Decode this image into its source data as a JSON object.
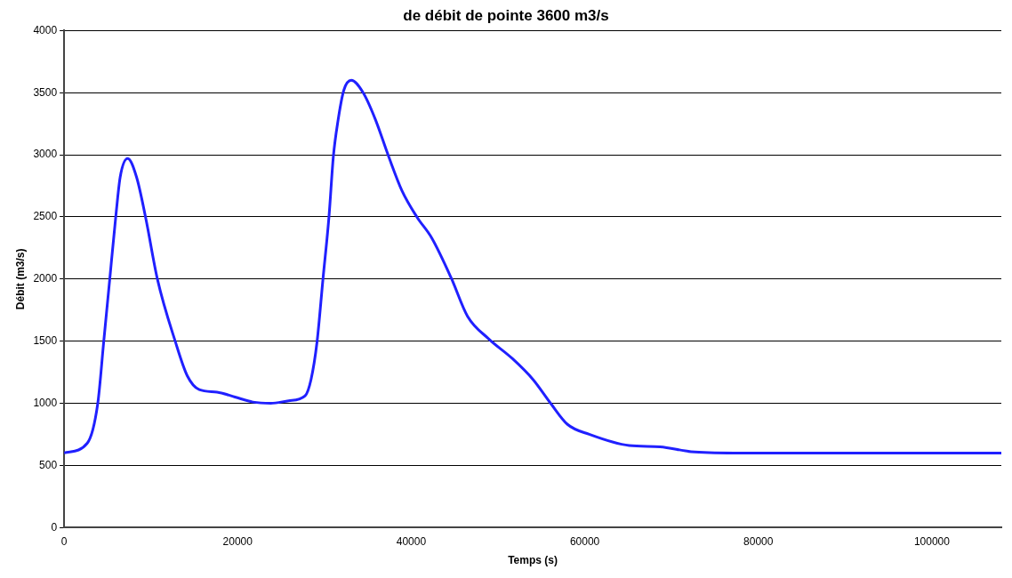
{
  "chart_data": {
    "type": "line",
    "title": "de débit de pointe 3600 m3/s",
    "xlabel": "Temps (s)",
    "ylabel": "Débit (m3/s)",
    "series": [
      {
        "color": "#2020ff",
        "x": [
          0,
          2680,
          3880,
          4570,
          5260,
          5950,
          6460,
          7320,
          8350,
          9380,
          10750,
          12800,
          14200,
          15570,
          17630,
          19690,
          21750,
          23810,
          25880,
          27770,
          28450,
          29140,
          29830,
          30520,
          31030,
          31550,
          32230,
          33090,
          34460,
          35840,
          37380,
          38940,
          40650,
          42370,
          44600,
          46490,
          48900,
          51650,
          54050,
          56060,
          58010,
          60510,
          65120,
          68660,
          72240,
          77220,
          108000
        ],
        "values": [
          600,
          680,
          1000,
          1500,
          2000,
          2500,
          2820,
          2970,
          2820,
          2500,
          2000,
          1500,
          1220,
          1110,
          1090,
          1050,
          1010,
          1000,
          1020,
          1060,
          1190,
          1490,
          2000,
          2500,
          2990,
          3270,
          3520,
          3600,
          3500,
          3290,
          2990,
          2710,
          2500,
          2330,
          2010,
          1700,
          1520,
          1360,
          1190,
          1000,
          830,
          750,
          660,
          650,
          610,
          600,
          600
        ]
      }
    ],
    "xlim": [
      0,
      108000
    ],
    "xticks": [
      0,
      20000,
      40000,
      60000,
      80000,
      100000
    ],
    "ylim": [
      0,
      4000
    ],
    "yticks": [
      0,
      500,
      1000,
      1500,
      2000,
      2500,
      3000,
      3500,
      4000
    ],
    "grid": "y",
    "legend": false,
    "marker": "none",
    "line_style": "solid"
  }
}
